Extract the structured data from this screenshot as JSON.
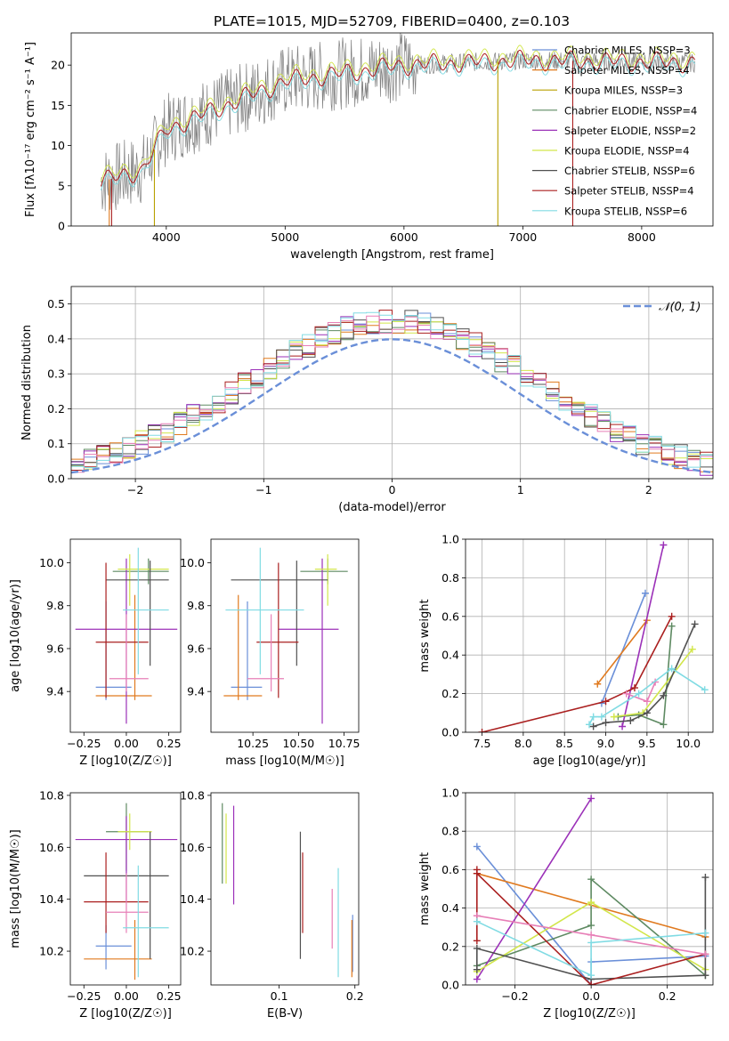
{
  "figure_title": "PLATE=1015, MJD=52709, FIBERID=0400, z=0.103",
  "colors": {
    "blue": "#6a8fd8",
    "orange": "#e07a1f",
    "green": "#5e8a62",
    "purple": "#9b30b8",
    "yellow": "#d2e64a",
    "gray": "#505050",
    "red": "#aa1f1f",
    "pink": "#e77fb7",
    "cyan": "#80dbe3",
    "olive": "#b8a000"
  },
  "chart_data": [
    {
      "id": "spectrum",
      "type": "line",
      "xlabel": "wavelength [Angstrom, rest frame]",
      "ylabel": "Flux [fλ10⁻¹⁷ erg cm⁻² s⁻¹ A⁻¹]",
      "xlim": [
        3200,
        8600
      ],
      "ylim": [
        0,
        24
      ],
      "xticks": [
        4000,
        5000,
        6000,
        7000,
        8000
      ],
      "yticks": [
        0,
        5,
        10,
        15,
        20
      ],
      "grid": false,
      "legend_position": "right",
      "spikes": [
        [
          3520,
          "orange"
        ],
        [
          3540,
          "red"
        ],
        [
          3900,
          "olive"
        ],
        [
          6790,
          "olive"
        ],
        [
          7420,
          "red"
        ]
      ],
      "legend": [
        {
          "label": "Chabrier MILES, N_SSP=3",
          "color": "blue"
        },
        {
          "label": "Salpeter MILES, N_SSP=4",
          "color": "orange"
        },
        {
          "label": "Kroupa MILES, N_SSP=3",
          "color": "olive"
        },
        {
          "label": "Chabrier ELODIE, N_SSP=4",
          "color": "green"
        },
        {
          "label": "Salpeter ELODIE, N_SSP=2",
          "color": "purple"
        },
        {
          "label": "Kroupa ELODIE, N_SSP=4",
          "color": "yellow"
        },
        {
          "label": "Chabrier STELIB, N_SSP=6",
          "color": "gray"
        },
        {
          "label": "Salpeter STELIB, N_SSP=4",
          "color": "red"
        },
        {
          "label": "Kroupa STELIB, N_SSP=6",
          "color": "cyan"
        }
      ]
    },
    {
      "id": "residuals",
      "type": "line",
      "xlabel": "(data-model)/error",
      "ylabel": "Normed distribution",
      "xlim": [
        -2.5,
        2.5
      ],
      "ylim": [
        0,
        0.55
      ],
      "xticks": [
        -2,
        -1,
        0,
        1,
        2
      ],
      "yticks": [
        0.0,
        0.1,
        0.2,
        0.3,
        0.4,
        0.5
      ],
      "grid": true,
      "legend_position": "top-right",
      "gaussian": {
        "label": "𝒩(0, 1)",
        "mean": 0,
        "sigma": 1,
        "color": "blue"
      }
    },
    {
      "id": "age_vs_Z",
      "type": "scatter",
      "xlabel": "Z [log10(Z/Z☉)]",
      "ylabel": "age  [log10(age/yr)]",
      "xlim": [
        -0.33,
        0.32
      ],
      "ylim": [
        9.21,
        10.11
      ],
      "xticks": [
        -0.25,
        0.0,
        0.25
      ],
      "yticks": [
        9.4,
        9.6,
        9.8,
        10.0
      ],
      "points": [
        {
          "c": "blue",
          "x": -0.12,
          "xe": [
            -0.18,
            0.03
          ],
          "y": 9.42,
          "ye": [
            9.36,
            9.82
          ]
        },
        {
          "c": "orange",
          "x": 0.05,
          "xe": [
            -0.18,
            0.15
          ],
          "y": 9.38,
          "ye": [
            9.36,
            9.85
          ]
        },
        {
          "c": "green",
          "x": 0.13,
          "xe": [
            -0.08,
            0.25
          ],
          "y": 9.96,
          "ye": [
            9.9,
            10.02
          ]
        },
        {
          "c": "purple",
          "x": 0.0,
          "xe": [
            -0.3,
            0.3
          ],
          "y": 9.69,
          "ye": [
            9.25,
            10.02
          ]
        },
        {
          "c": "yellow",
          "x": 0.02,
          "xe": [
            -0.05,
            0.25
          ],
          "y": 9.97,
          "ye": [
            9.8,
            10.04
          ]
        },
        {
          "c": "gray",
          "x": 0.14,
          "xe": [
            -0.12,
            0.25
          ],
          "y": 9.92,
          "ye": [
            9.52,
            10.01
          ]
        },
        {
          "c": "red",
          "x": -0.12,
          "xe": [
            -0.18,
            0.13
          ],
          "y": 9.63,
          "ye": [
            9.37,
            10.0
          ]
        },
        {
          "c": "pink",
          "x": 0.0,
          "xe": [
            -0.1,
            0.13
          ],
          "y": 9.46,
          "ye": [
            9.4,
            9.76
          ]
        },
        {
          "c": "cyan",
          "x": 0.07,
          "xe": [
            -0.02,
            0.25
          ],
          "y": 9.78,
          "ye": [
            9.48,
            10.07
          ]
        }
      ]
    },
    {
      "id": "age_vs_mass",
      "type": "scatter",
      "xlabel": "mass [log10(M/M☉)]",
      "ylabel": "",
      "xlim": [
        10.02,
        10.83
      ],
      "ylim": [
        9.21,
        10.11
      ],
      "xticks": [
        10.25,
        10.5,
        10.75
      ],
      "yticks": [
        9.4,
        9.6,
        9.8,
        10.0
      ],
      "points": [
        {
          "c": "blue",
          "x": 10.22,
          "xe": [
            10.13,
            10.3
          ],
          "y": 9.42,
          "ye": [
            9.36,
            9.82
          ]
        },
        {
          "c": "orange",
          "x": 10.17,
          "xe": [
            10.09,
            10.3
          ],
          "y": 9.38,
          "ye": [
            9.36,
            9.85
          ]
        },
        {
          "c": "green",
          "x": 10.66,
          "xe": [
            10.51,
            10.77
          ],
          "y": 9.96,
          "ye": [
            9.9,
            10.02
          ]
        },
        {
          "c": "purple",
          "x": 10.63,
          "xe": [
            10.39,
            10.72
          ],
          "y": 9.69,
          "ye": [
            9.25,
            10.02
          ]
        },
        {
          "c": "yellow",
          "x": 10.66,
          "xe": [
            10.59,
            10.71
          ],
          "y": 9.97,
          "ye": [
            9.8,
            10.04
          ]
        },
        {
          "c": "gray",
          "x": 10.49,
          "xe": [
            10.13,
            10.66
          ],
          "y": 9.92,
          "ye": [
            9.52,
            10.01
          ]
        },
        {
          "c": "red",
          "x": 10.39,
          "xe": [
            10.27,
            10.5
          ],
          "y": 9.63,
          "ye": [
            9.37,
            10.0
          ]
        },
        {
          "c": "pink",
          "x": 10.35,
          "xe": [
            10.22,
            10.42
          ],
          "y": 9.46,
          "ye": [
            9.4,
            9.76
          ]
        },
        {
          "c": "cyan",
          "x": 10.29,
          "xe": [
            10.1,
            10.53
          ],
          "y": 9.78,
          "ye": [
            9.48,
            10.07
          ]
        }
      ]
    },
    {
      "id": "weight_vs_age",
      "type": "line",
      "xlabel": "age  [log10(age/yr)]",
      "ylabel": "mass weight",
      "xlim": [
        7.3,
        10.3
      ],
      "ylim": [
        0,
        1.0
      ],
      "xticks": [
        7.5,
        8.0,
        8.5,
        9.0,
        9.5,
        10.0
      ],
      "yticks": [
        0.0,
        0.2,
        0.4,
        0.6,
        0.8,
        1.0
      ],
      "grid": true,
      "series": [
        {
          "c": "blue",
          "x": [
            8.95,
            9.48
          ],
          "y": [
            0.15,
            0.72
          ]
        },
        {
          "c": "orange",
          "x": [
            8.9,
            9.5
          ],
          "y": [
            0.25,
            0.58
          ]
        },
        {
          "c": "green",
          "x": [
            9.15,
            9.4,
            9.7,
            9.8
          ],
          "y": [
            0.08,
            0.09,
            0.04,
            0.55
          ]
        },
        {
          "c": "purple",
          "x": [
            9.2,
            9.7
          ],
          "y": [
            0.03,
            0.97
          ]
        },
        {
          "c": "yellow",
          "x": [
            9.1,
            9.45,
            10.05
          ],
          "y": [
            0.08,
            0.1,
            0.43
          ]
        },
        {
          "c": "gray",
          "x": [
            8.85,
            9.0,
            9.3,
            9.5,
            9.7,
            10.08
          ],
          "y": [
            0.03,
            0.05,
            0.06,
            0.1,
            0.19,
            0.56
          ]
        },
        {
          "c": "red",
          "x": [
            7.5,
            9.0,
            9.35,
            9.8
          ],
          "y": [
            0.0,
            0.16,
            0.23,
            0.6
          ]
        },
        {
          "c": "pink",
          "x": [
            9.25,
            9.5,
            9.6
          ],
          "y": [
            0.2,
            0.16,
            0.26
          ]
        },
        {
          "c": "cyan",
          "x": [
            8.8,
            8.85,
            8.95,
            9.4,
            9.8,
            10.2
          ],
          "y": [
            0.04,
            0.08,
            0.08,
            0.2,
            0.33,
            0.22
          ]
        }
      ]
    },
    {
      "id": "mass_vs_Z",
      "type": "scatter",
      "xlabel": "Z [log10(Z/Z☉)]",
      "ylabel": "mass [log10(M/M☉)]",
      "xlim": [
        -0.33,
        0.32
      ],
      "ylim": [
        10.07,
        10.81
      ],
      "xticks": [
        -0.25,
        0.0,
        0.25
      ],
      "yticks": [
        10.2,
        10.4,
        10.6,
        10.8
      ],
      "points": [
        {
          "c": "blue",
          "x": -0.12,
          "xe": [
            -0.18,
            0.03
          ],
          "y": 10.22,
          "ye": [
            10.13,
            10.3
          ]
        },
        {
          "c": "orange",
          "x": 0.05,
          "xe": [
            -0.25,
            0.15
          ],
          "y": 10.17,
          "ye": [
            10.09,
            10.32
          ]
        },
        {
          "c": "green",
          "x": 0.0,
          "xe": [
            -0.12,
            0.13
          ],
          "y": 10.66,
          "ye": [
            10.51,
            10.77
          ]
        },
        {
          "c": "purple",
          "x": 0.0,
          "xe": [
            -0.3,
            0.3
          ],
          "y": 10.63,
          "ye": [
            10.39,
            10.72
          ]
        },
        {
          "c": "yellow",
          "x": 0.02,
          "xe": [
            -0.05,
            0.15
          ],
          "y": 10.66,
          "ye": [
            10.59,
            10.73
          ]
        },
        {
          "c": "gray",
          "x": 0.14,
          "xe": [
            -0.25,
            0.25
          ],
          "y": 10.49,
          "ye": [
            10.17,
            10.66
          ]
        },
        {
          "c": "red",
          "x": -0.12,
          "xe": [
            -0.25,
            0.13
          ],
          "y": 10.39,
          "ye": [
            10.27,
            10.58
          ]
        },
        {
          "c": "pink",
          "x": 0.0,
          "xe": [
            -0.12,
            0.13
          ],
          "y": 10.35,
          "ye": [
            10.27,
            10.5
          ]
        },
        {
          "c": "cyan",
          "x": 0.07,
          "xe": [
            -0.02,
            0.25
          ],
          "y": 10.29,
          "ye": [
            10.1,
            10.53
          ]
        }
      ]
    },
    {
      "id": "mass_vs_ebv",
      "type": "scatter",
      "xlabel": "E(B-V)",
      "ylabel": "",
      "xlim": [
        0.01,
        0.205
      ],
      "ylim": [
        10.07,
        10.81
      ],
      "xticks": [
        0.1,
        0.2
      ],
      "yticks": [
        10.2,
        10.4,
        10.6,
        10.8
      ],
      "points": [
        {
          "c": "blue",
          "x": 0.197,
          "y": 10.22,
          "ye": [
            10.12,
            10.34
          ]
        },
        {
          "c": "orange",
          "x": 0.196,
          "y": 10.17,
          "ye": [
            10.1,
            10.32
          ]
        },
        {
          "c": "green",
          "x": 0.025,
          "y": 10.66,
          "ye": [
            10.46,
            10.77
          ]
        },
        {
          "c": "purple",
          "x": 0.04,
          "y": 10.63,
          "ye": [
            10.38,
            10.76
          ]
        },
        {
          "c": "yellow",
          "x": 0.03,
          "y": 10.66,
          "ye": [
            10.46,
            10.73
          ]
        },
        {
          "c": "gray",
          "x": 0.128,
          "y": 10.49,
          "ye": [
            10.17,
            10.66
          ]
        },
        {
          "c": "red",
          "x": 0.131,
          "y": 10.39,
          "ye": [
            10.27,
            10.58
          ]
        },
        {
          "c": "pink",
          "x": 0.17,
          "y": 10.35,
          "ye": [
            10.21,
            10.44
          ]
        },
        {
          "c": "cyan",
          "x": 0.178,
          "y": 10.29,
          "ye": [
            10.1,
            10.52
          ]
        }
      ]
    },
    {
      "id": "weight_vs_Z",
      "type": "line",
      "xlabel": "Z [log10(Z/Z☉)]",
      "ylabel": "mass weight",
      "xlim": [
        -0.33,
        0.32
      ],
      "ylim": [
        0,
        1.0
      ],
      "xticks": [
        -0.2,
        0.0,
        0.2
      ],
      "yticks": [
        0.0,
        0.2,
        0.4,
        0.6,
        0.8,
        1.0
      ],
      "grid": true,
      "series": [
        {
          "c": "blue",
          "x": [
            -0.3,
            0.0,
            0.0,
            0.3
          ],
          "y": [
            0.72,
            0.0,
            0.12,
            0.15
          ]
        },
        {
          "c": "orange",
          "x": [
            -0.3,
            0.3
          ],
          "y": [
            0.58,
            0.25
          ]
        },
        {
          "c": "green",
          "x": [
            -0.3,
            0.0,
            0.0,
            0.3
          ],
          "y": [
            0.1,
            0.31,
            0.55,
            0.05
          ]
        },
        {
          "c": "purple",
          "x": [
            -0.3,
            0.0
          ],
          "y": [
            0.03,
            0.97
          ]
        },
        {
          "c": "yellow",
          "x": [
            -0.3,
            0.0,
            0.3
          ],
          "y": [
            0.07,
            0.43,
            0.08
          ]
        },
        {
          "c": "gray",
          "x": [
            -0.3,
            -0.3,
            0.0,
            0.3,
            0.3
          ],
          "y": [
            0.08,
            0.19,
            0.03,
            0.05,
            0.56
          ]
        },
        {
          "c": "red",
          "x": [
            -0.3,
            -0.3,
            -0.3,
            0.0,
            0.3
          ],
          "y": [
            0.23,
            0.6,
            0.58,
            0.0,
            0.16
          ]
        },
        {
          "c": "pink",
          "x": [
            -0.3,
            0.0,
            0.3
          ],
          "y": [
            0.36,
            0.26,
            0.16
          ]
        },
        {
          "c": "cyan",
          "x": [
            -0.3,
            0.0,
            0.0,
            0.3
          ],
          "y": [
            0.33,
            0.05,
            0.22,
            0.27
          ]
        }
      ]
    }
  ]
}
